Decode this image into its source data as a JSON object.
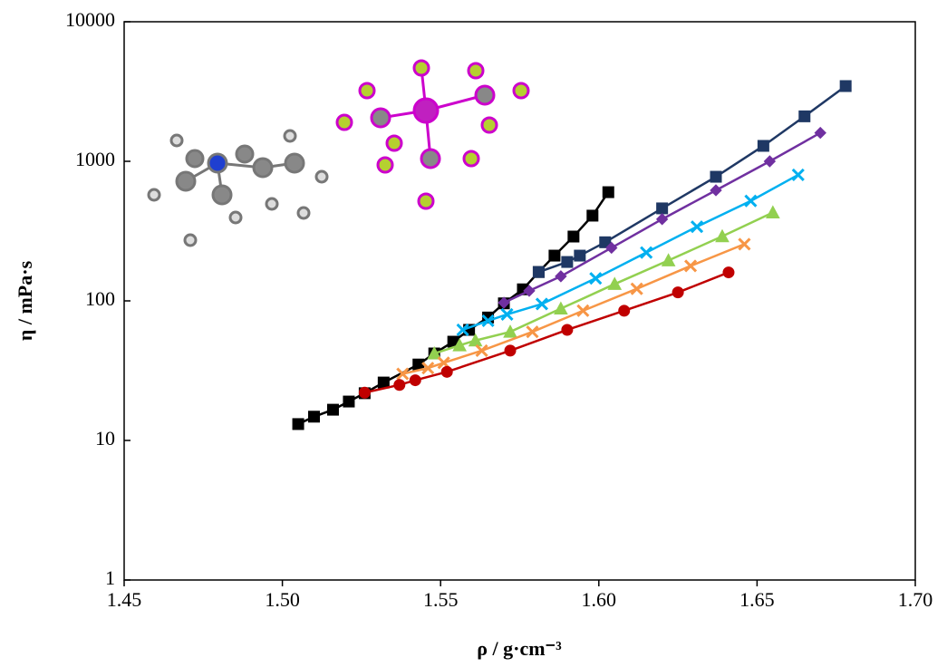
{
  "chart_data": {
    "type": "line",
    "x_label": "ρ / g·cm⁻³",
    "y_label": "η / mPa·s",
    "xlim": [
      1.45,
      1.7
    ],
    "xticks": [
      1.45,
      {
        "value": 1.5,
        "label": "1.50"
      },
      1.55,
      {
        "value": 1.6,
        "label": "1.60"
      },
      1.65,
      {
        "value": 1.7,
        "label": "1.70"
      }
    ],
    "ylim": [
      1,
      10000
    ],
    "yticks": [
      1,
      10,
      100,
      1000,
      10000
    ],
    "log_y": true,
    "grid": false,
    "series": [
      {
        "color": "#000000",
        "marker": "square",
        "x": [
          1.505,
          1.51,
          1.516,
          1.521,
          1.526,
          1.532,
          1.543,
          1.548,
          1.554,
          1.559,
          1.565,
          1.57,
          1.576,
          1.581,
          1.586,
          1.592,
          1.598,
          1.603
        ],
        "values": [
          13.1,
          14.8,
          16.6,
          19,
          21.8,
          26,
          35,
          42,
          51,
          62,
          76,
          96,
          121,
          161,
          211,
          289,
          408,
          601
        ]
      },
      {
        "color": "#1f3864",
        "marker": "square",
        "x": [
          1.581,
          1.59,
          1.594,
          1.602,
          1.62,
          1.637,
          1.652,
          1.665,
          1.678
        ],
        "values": [
          161,
          190,
          211,
          263,
          460,
          775,
          1290,
          2100,
          3460
        ]
      },
      {
        "color": "#7030a0",
        "marker": "diamond",
        "x": [
          1.57,
          1.578,
          1.588,
          1.604,
          1.62,
          1.637,
          1.654,
          1.67
        ],
        "values": [
          97,
          118,
          150,
          240,
          385,
          620,
          1000,
          1600
        ]
      },
      {
        "color": "#00b0f0",
        "marker": "cross",
        "x": [
          1.557,
          1.565,
          1.571,
          1.582,
          1.599,
          1.615,
          1.631,
          1.648,
          1.663
        ],
        "values": [
          62,
          72,
          80,
          95,
          145,
          222,
          340,
          520,
          800
        ]
      },
      {
        "color": "#92d050",
        "marker": "triangle",
        "x": [
          1.548,
          1.556,
          1.561,
          1.572,
          1.588,
          1.605,
          1.622,
          1.639,
          1.655
        ],
        "values": [
          42,
          48,
          52,
          60,
          88,
          132,
          195,
          290,
          430
        ]
      },
      {
        "color": "#f79646",
        "marker": "cross",
        "x": [
          1.538,
          1.546,
          1.551,
          1.563,
          1.579,
          1.595,
          1.612,
          1.629,
          1.646
        ],
        "values": [
          30,
          33,
          36,
          44,
          60,
          85,
          122,
          178,
          255
        ]
      },
      {
        "color": "#c00000",
        "marker": "circle",
        "x": [
          1.526,
          1.537,
          1.542,
          1.552,
          1.572,
          1.59,
          1.608,
          1.625,
          1.641
        ],
        "values": [
          22,
          25,
          27,
          31,
          44,
          62,
          85,
          115,
          160
        ]
      }
    ]
  }
}
